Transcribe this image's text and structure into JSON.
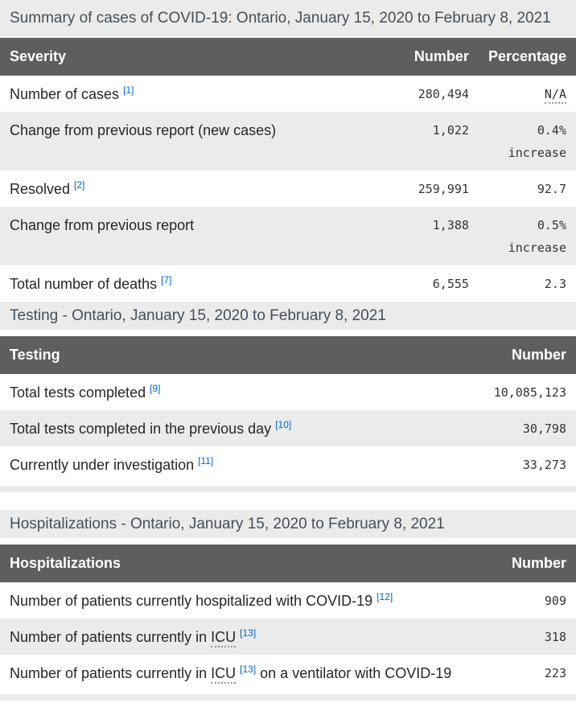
{
  "colors": {
    "caption_bg": "#ebebeb",
    "caption_text": "#454f59",
    "header_bg": "#5e5e5e",
    "header_text": "#ffffff",
    "row_alt_bg": "#ebebeb",
    "label_text": "#262626",
    "number_text": "#333333",
    "footnote_link": "#0066cc"
  },
  "tables": [
    {
      "id": "summary",
      "caption": "Summary of cases of COVID-19: Ontario, January 15, 2020 to February 8, 2021",
      "tight_caption": true,
      "headers": [
        {
          "label": "Severity",
          "align": "left"
        },
        {
          "label": "Number",
          "align": "right"
        },
        {
          "label": "Percentage",
          "align": "right"
        }
      ],
      "rows": [
        {
          "cells": [
            {
              "type": "label",
              "parts": [
                {
                  "text": "Number of cases "
                },
                {
                  "sup": "[1]"
                }
              ]
            },
            {
              "type": "number",
              "value": "280,494"
            },
            {
              "type": "number",
              "parts": [
                {
                  "abbr": "N/A"
                }
              ]
            }
          ]
        },
        {
          "cells": [
            {
              "type": "label",
              "parts": [
                {
                  "text": "Change from previous report (new cases)"
                }
              ]
            },
            {
              "type": "number",
              "value": "1,022"
            },
            {
              "type": "number",
              "value": "0.4%",
              "note": "increase"
            }
          ]
        },
        {
          "cells": [
            {
              "type": "label",
              "parts": [
                {
                  "text": "Resolved "
                },
                {
                  "sup": "[2]"
                }
              ]
            },
            {
              "type": "number",
              "value": "259,991"
            },
            {
              "type": "number",
              "value": "92.7"
            }
          ]
        },
        {
          "cells": [
            {
              "type": "label",
              "parts": [
                {
                  "text": "Change from previous report"
                }
              ]
            },
            {
              "type": "number",
              "value": "1,388"
            },
            {
              "type": "number",
              "value": "0.5%",
              "note": "increase"
            }
          ]
        },
        {
          "cells": [
            {
              "type": "label",
              "parts": [
                {
                  "text": "Total number of deaths "
                },
                {
                  "sup": "[7]"
                }
              ]
            },
            {
              "type": "number",
              "value": "6,555"
            },
            {
              "type": "number",
              "value": "2.3"
            }
          ]
        }
      ],
      "strip_after": false
    },
    {
      "id": "testing",
      "caption": "Testing - Ontario, January 15, 2020 to February 8, 2021",
      "headers": [
        {
          "label": "Testing",
          "align": "left"
        },
        {
          "label": "Number",
          "align": "right"
        }
      ],
      "rows": [
        {
          "cells": [
            {
              "type": "label",
              "parts": [
                {
                  "text": "Total tests completed "
                },
                {
                  "sup": "[9]"
                }
              ]
            },
            {
              "type": "number",
              "value": "10,085,123"
            }
          ]
        },
        {
          "cells": [
            {
              "type": "label",
              "parts": [
                {
                  "text": "Total tests completed in the previous day "
                },
                {
                  "sup": "[10]"
                }
              ]
            },
            {
              "type": "number",
              "value": "30,798"
            }
          ]
        },
        {
          "cells": [
            {
              "type": "label",
              "parts": [
                {
                  "text": "Currently under investigation "
                },
                {
                  "sup": "[11]"
                }
              ]
            },
            {
              "type": "number",
              "value": "33,273"
            }
          ]
        }
      ],
      "strip_after": true
    },
    {
      "id": "hospitalizations",
      "caption": "Hospitalizations - Ontario, January 15, 2020 to February 8, 2021",
      "gap_before": true,
      "headers": [
        {
          "label": "Hospitalizations",
          "align": "left"
        },
        {
          "label": "Number",
          "align": "right"
        }
      ],
      "rows": [
        {
          "cells": [
            {
              "type": "label",
              "parts": [
                {
                  "text": "Number of patients currently hospitalized with COVID-19 "
                },
                {
                  "sup": "[12]"
                }
              ]
            },
            {
              "type": "number",
              "value": "909"
            }
          ]
        },
        {
          "cells": [
            {
              "type": "label",
              "parts": [
                {
                  "text": "Number of patients currently in "
                },
                {
                  "abbr": "ICU"
                },
                {
                  "text": " "
                },
                {
                  "sup": "[13]"
                }
              ]
            },
            {
              "type": "number",
              "value": "318"
            }
          ]
        },
        {
          "cells": [
            {
              "type": "label",
              "parts": [
                {
                  "text": "Number of patients currently in "
                },
                {
                  "abbr": "ICU"
                },
                {
                  "text": " "
                },
                {
                  "sup": "[13]"
                },
                {
                  "text": " on a ventilator with COVID-19"
                }
              ]
            },
            {
              "type": "number",
              "value": "223"
            }
          ]
        }
      ],
      "strip_after": true
    }
  ]
}
